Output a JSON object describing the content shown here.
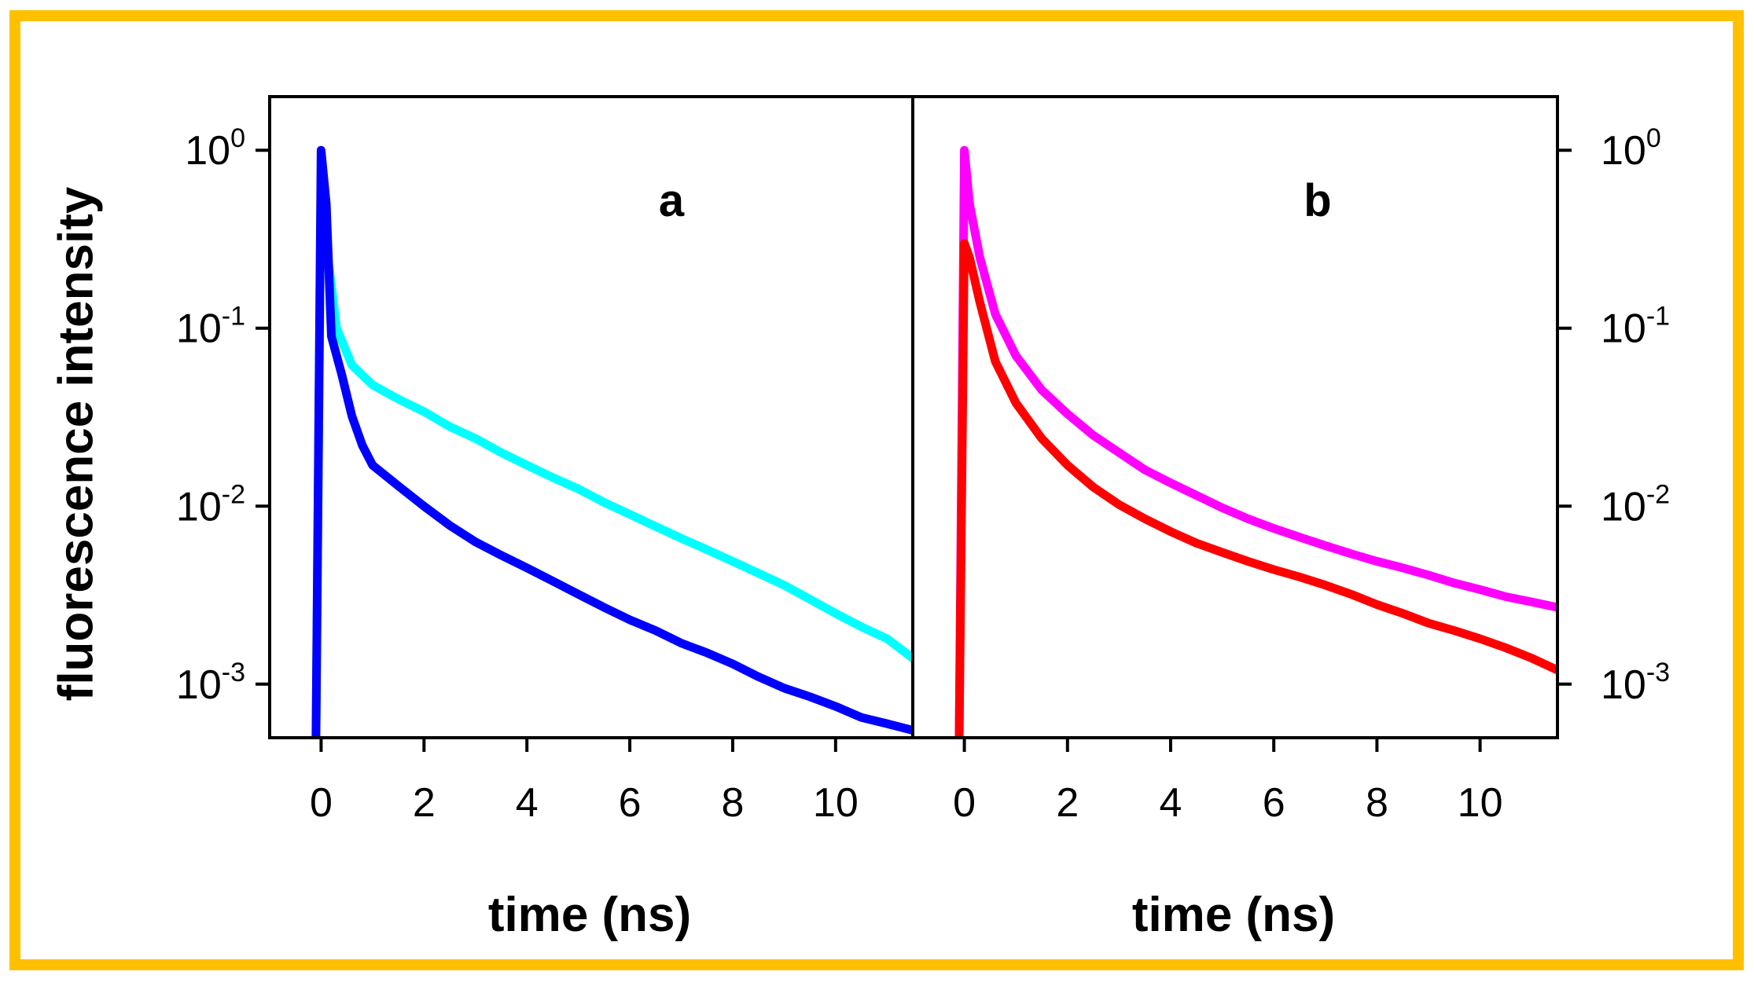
{
  "chart_data": [
    {
      "type": "line",
      "panel": "a",
      "ylog": true,
      "xlabel": "time (ns)",
      "ylabel": "fluorescence intensity",
      "xlim": [
        -1,
        11.5
      ],
      "ylim": [
        0.0005,
        2
      ],
      "xticks": [
        "0",
        "2",
        "4",
        "6",
        "8",
        "10"
      ],
      "xtick_values": [
        0,
        2,
        4,
        6,
        8,
        10
      ],
      "yticks": [
        {
          "base": "10",
          "exp": "0"
        },
        {
          "base": "10",
          "exp": "-1"
        },
        {
          "base": "10",
          "exp": "-2"
        },
        {
          "base": "10",
          "exp": "-3"
        }
      ],
      "ytick_values": [
        1,
        0.1,
        0.01,
        0.001
      ],
      "series": [
        {
          "name": "cyan trace",
          "color": "#00ffff",
          "x": [
            -0.1,
            0.0,
            0.1,
            0.3,
            0.6,
            1.0,
            1.5,
            2.0,
            2.5,
            3.0,
            3.5,
            4.0,
            4.5,
            5.0,
            5.5,
            6.0,
            6.5,
            7.0,
            7.5,
            8.0,
            8.5,
            9.0,
            9.5,
            10.0,
            10.5,
            11.0,
            11.5
          ],
          "y": [
            0.0005,
            0.8,
            0.3,
            0.1,
            0.062,
            0.048,
            0.04,
            0.034,
            0.028,
            0.024,
            0.02,
            0.017,
            0.0145,
            0.0125,
            0.0105,
            0.009,
            0.0077,
            0.0066,
            0.0057,
            0.0049,
            0.0042,
            0.0036,
            0.003,
            0.0025,
            0.0021,
            0.0018,
            0.0014
          ]
        },
        {
          "name": "blue trace",
          "color": "#0000ff",
          "x": [
            -0.1,
            0.0,
            0.1,
            0.2,
            0.4,
            0.6,
            0.8,
            1.0,
            1.5,
            2.0,
            2.5,
            3.0,
            3.5,
            4.0,
            4.5,
            5.0,
            5.5,
            6.0,
            6.5,
            7.0,
            7.5,
            8.0,
            8.5,
            9.0,
            9.5,
            10.0,
            10.5,
            11.0,
            11.5
          ],
          "y": [
            0.0005,
            1.0,
            0.5,
            0.09,
            0.055,
            0.032,
            0.022,
            0.017,
            0.013,
            0.01,
            0.0078,
            0.0063,
            0.0053,
            0.0045,
            0.0038,
            0.0032,
            0.0027,
            0.0023,
            0.002,
            0.0017,
            0.0015,
            0.0013,
            0.0011,
            0.00095,
            0.00085,
            0.00075,
            0.00065,
            0.0006,
            0.00055
          ]
        }
      ]
    },
    {
      "type": "line",
      "panel": "b",
      "ylog": true,
      "xlabel": "time (ns)",
      "xlim": [
        -1,
        11.5
      ],
      "ylim": [
        0.0005,
        2
      ],
      "xticks": [
        "0",
        "2",
        "4",
        "6",
        "8",
        "10"
      ],
      "xtick_values": [
        0,
        2,
        4,
        6,
        8,
        10
      ],
      "yticks": [
        {
          "base": "10",
          "exp": "0"
        },
        {
          "base": "10",
          "exp": "-1"
        },
        {
          "base": "10",
          "exp": "-2"
        },
        {
          "base": "10",
          "exp": "-3"
        }
      ],
      "ytick_values": [
        1,
        0.1,
        0.01,
        0.001
      ],
      "series": [
        {
          "name": "magenta trace",
          "color": "#ff00ff",
          "x": [
            -0.1,
            0.0,
            0.1,
            0.3,
            0.6,
            1.0,
            1.5,
            2.0,
            2.5,
            3.0,
            3.5,
            4.0,
            4.5,
            5.0,
            5.5,
            6.0,
            6.5,
            7.0,
            7.5,
            8.0,
            8.5,
            9.0,
            9.5,
            10.0,
            10.5,
            11.0,
            11.5
          ],
          "y": [
            0.0005,
            1.0,
            0.5,
            0.25,
            0.12,
            0.07,
            0.045,
            0.033,
            0.025,
            0.02,
            0.016,
            0.0135,
            0.0115,
            0.0098,
            0.0085,
            0.0075,
            0.0067,
            0.006,
            0.0054,
            0.0049,
            0.0045,
            0.0041,
            0.0037,
            0.0034,
            0.0031,
            0.0029,
            0.0027
          ]
        },
        {
          "name": "red trace",
          "color": "#ff0000",
          "x": [
            -0.1,
            0.0,
            0.1,
            0.3,
            0.6,
            1.0,
            1.5,
            2.0,
            2.5,
            3.0,
            3.5,
            4.0,
            4.5,
            5.0,
            5.5,
            6.0,
            6.5,
            7.0,
            7.5,
            8.0,
            8.5,
            9.0,
            9.5,
            10.0,
            10.5,
            11.0,
            11.5
          ],
          "y": [
            0.0005,
            0.3,
            0.25,
            0.14,
            0.065,
            0.038,
            0.024,
            0.017,
            0.0128,
            0.0102,
            0.0085,
            0.0072,
            0.0062,
            0.0055,
            0.0049,
            0.0044,
            0.004,
            0.0036,
            0.0032,
            0.0028,
            0.0025,
            0.0022,
            0.002,
            0.0018,
            0.0016,
            0.0014,
            0.0012
          ]
        }
      ]
    }
  ],
  "frame_color": "#ffc000"
}
